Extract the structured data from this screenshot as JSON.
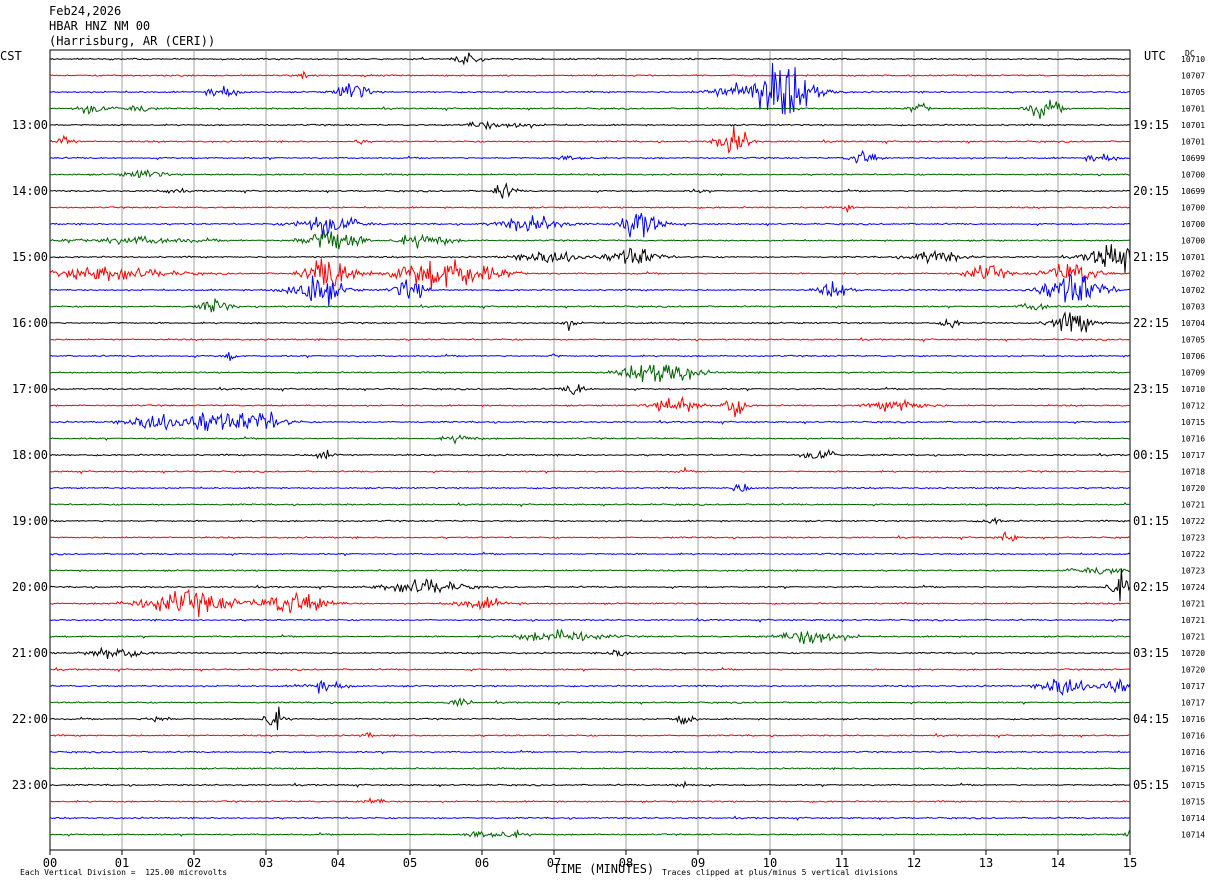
{
  "header": {
    "date": "Feb24,2026",
    "station": "HBAR HNZ NM 00",
    "location": "(Harrisburg, AR (CERI))"
  },
  "left_axis_title": "CST",
  "right_axis_title": "UTC",
  "dc_title": "DC",
  "footer": {
    "xlabel": "TIME (MINUTES)",
    "scale_note": "Each Vertical Division =  125.00 microvolts",
    "clip_note": "Traces clipped at plus/minus 5 vertical divisions"
  },
  "chart_data": {
    "type": "line",
    "subtype": "helicorder",
    "title": "HBAR HNZ NM 00",
    "xlabel": "TIME (MINUTES)",
    "xlim": [
      0,
      15
    ],
    "x_ticks": [
      "00",
      "01",
      "02",
      "03",
      "04",
      "05",
      "06",
      "07",
      "08",
      "09",
      "10",
      "11",
      "12",
      "13",
      "14",
      "15"
    ],
    "trace_minutes": 15,
    "trace_count": 48,
    "trace_colors": [
      "#000000",
      "#ff0000",
      "#0000ff",
      "#006400"
    ],
    "left_time_labels": [
      "13:00",
      "14:00",
      "15:00",
      "16:00",
      "17:00",
      "18:00",
      "19:00",
      "20:00",
      "21:00",
      "22:00",
      "23:00"
    ],
    "right_time_labels": [
      "19:15",
      "20:15",
      "21:15",
      "22:15",
      "23:15",
      "00:15",
      "01:15",
      "02:15",
      "03:15",
      "04:15",
      "05:15"
    ],
    "dc_offsets": [
      10710,
      10707,
      10705,
      10701,
      10701,
      10701,
      10699,
      10700,
      10699,
      10700,
      10700,
      10700,
      10701,
      10702,
      10702,
      10703,
      10704,
      10705,
      10706,
      10709,
      10710,
      10712,
      10715,
      10716,
      10717,
      10718,
      10720,
      10721,
      10722,
      10723,
      10722,
      10723,
      10724,
      10721,
      10721,
      10721,
      10720,
      10720,
      10717,
      10717,
      10716,
      10716,
      10716,
      10715,
      10715,
      10715,
      10714,
      10714
    ]
  }
}
